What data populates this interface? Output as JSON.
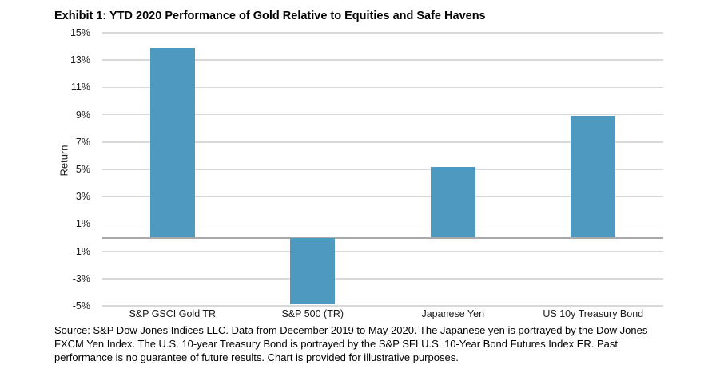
{
  "page": {
    "title": "Exhibit 1: YTD 2020 Performance of Gold Relative to Equities and Safe Havens"
  },
  "chart_data": {
    "type": "bar",
    "title": "Exhibit 1: YTD 2020 Performance of Gold Relative to Equities and Safe Havens",
    "categories": [
      "S&P GSCI Gold TR",
      "S&P 500 (TR)",
      "Japanese Yen",
      "US 10y Treasury Bond"
    ],
    "values": [
      13.9,
      -4.9,
      5.2,
      8.9
    ],
    "xlabel": "",
    "ylabel": "Return",
    "ylim": [
      -5,
      15
    ],
    "ytick_step": 2,
    "ytick_labels": [
      "15%",
      "13%",
      "11%",
      "9%",
      "7%",
      "5%",
      "3%",
      "1%",
      "-1%",
      "-3%",
      "-5%"
    ],
    "grid": true,
    "legend": "none",
    "zero_baseline": 0,
    "bar_color": "#4D99C0",
    "gridline_color": "#D9D9D9",
    "zero_line_color": "#A9A9A9"
  },
  "source": {
    "lines": [
      "Source: S&P Dow Jones Indices LLC. Data from December 2019 to May 2020. The Japanese yen is portrayed by the Dow Jones",
      "FXCM Yen Index. The U.S. 10-year Treasury Bond is portrayed by the S&P SFI U.S. 10-Year Bond Futures Index ER. Past",
      "performance is no guarantee of future results. Chart is provided for illustrative purposes."
    ]
  }
}
